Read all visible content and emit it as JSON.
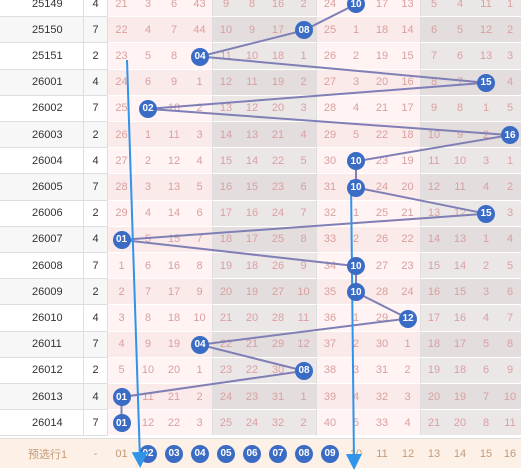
{
  "colors": {
    "red_text": "#d9a0a0",
    "row_bg_a": "#ffffff",
    "row_bg_b": "#f7f7f7",
    "red_bg_a": "#fff3f3",
    "red_bg_b": "#fbeaea",
    "shade_bg_a": "#ece7e7",
    "shade_bg_b": "#e3dddd",
    "ball": "#3a6cc5",
    "line": "#7f7fb6",
    "arrow": "#2f94ea",
    "footer_bg": "#fdf1e7",
    "footer_text": "#c49a77",
    "border": "#dedede"
  },
  "rows": [
    {
      "id": "25149",
      "cnt": "4",
      "vals": [
        "21",
        "3",
        "6",
        "43",
        "9",
        "8",
        "16",
        "2",
        "24",
        "10",
        "17",
        "13",
        "5",
        "4",
        "11",
        "1"
      ],
      "ball": 10
    },
    {
      "id": "25150",
      "cnt": "7",
      "vals": [
        "22",
        "4",
        "7",
        "44",
        "10",
        "9",
        "17",
        "08",
        "25",
        "1",
        "18",
        "14",
        "6",
        "5",
        "12",
        "2"
      ],
      "ball": 8
    },
    {
      "id": "25151",
      "cnt": "2",
      "vals": [
        "23",
        "5",
        "8",
        "04",
        "11",
        "10",
        "18",
        "1",
        "26",
        "2",
        "19",
        "15",
        "7",
        "6",
        "13",
        "3"
      ],
      "ball": 4
    },
    {
      "id": "26001",
      "cnt": "4",
      "vals": [
        "24",
        "6",
        "9",
        "1",
        "12",
        "11",
        "19",
        "2",
        "27",
        "3",
        "20",
        "16",
        "8",
        "7",
        "15",
        "4"
      ],
      "ball": 15
    },
    {
      "id": "26002",
      "cnt": "7",
      "vals": [
        "25",
        "02",
        "10",
        "2",
        "13",
        "12",
        "20",
        "3",
        "28",
        "4",
        "21",
        "17",
        "9",
        "8",
        "1",
        "5"
      ],
      "ball": 2
    },
    {
      "id": "26003",
      "cnt": "2",
      "vals": [
        "26",
        "1",
        "11",
        "3",
        "14",
        "13",
        "21",
        "4",
        "29",
        "5",
        "22",
        "18",
        "10",
        "9",
        "2",
        "16"
      ],
      "ball": 16
    },
    {
      "id": "26004",
      "cnt": "4",
      "vals": [
        "27",
        "2",
        "12",
        "4",
        "15",
        "14",
        "22",
        "5",
        "30",
        "10",
        "23",
        "19",
        "11",
        "10",
        "3",
        "1"
      ],
      "ball": 10
    },
    {
      "id": "26005",
      "cnt": "7",
      "vals": [
        "28",
        "3",
        "13",
        "5",
        "16",
        "15",
        "23",
        "6",
        "31",
        "10",
        "24",
        "20",
        "12",
        "11",
        "4",
        "2"
      ],
      "ball": 10
    },
    {
      "id": "26006",
      "cnt": "2",
      "vals": [
        "29",
        "4",
        "14",
        "6",
        "17",
        "16",
        "24",
        "7",
        "32",
        "1",
        "25",
        "21",
        "13",
        "12",
        "15",
        "3"
      ],
      "ball": 15
    },
    {
      "id": "26007",
      "cnt": "4",
      "vals": [
        "01",
        "5",
        "15",
        "7",
        "18",
        "17",
        "25",
        "8",
        "33",
        "2",
        "26",
        "22",
        "14",
        "13",
        "1",
        "4"
      ],
      "ball": 1
    },
    {
      "id": "26008",
      "cnt": "7",
      "vals": [
        "1",
        "6",
        "16",
        "8",
        "19",
        "18",
        "26",
        "9",
        "34",
        "10",
        "27",
        "23",
        "15",
        "14",
        "2",
        "5"
      ],
      "ball": 10
    },
    {
      "id": "26009",
      "cnt": "2",
      "vals": [
        "2",
        "7",
        "17",
        "9",
        "20",
        "19",
        "27",
        "10",
        "35",
        "10",
        "28",
        "24",
        "16",
        "15",
        "3",
        "6"
      ],
      "ball": 10
    },
    {
      "id": "26010",
      "cnt": "4",
      "vals": [
        "3",
        "8",
        "18",
        "10",
        "21",
        "20",
        "28",
        "11",
        "36",
        "1",
        "29",
        "12",
        "17",
        "16",
        "4",
        "7"
      ],
      "ball": 12
    },
    {
      "id": "26011",
      "cnt": "7",
      "vals": [
        "4",
        "9",
        "19",
        "04",
        "22",
        "21",
        "29",
        "12",
        "37",
        "2",
        "30",
        "1",
        "18",
        "17",
        "5",
        "8"
      ],
      "ball": 4
    },
    {
      "id": "26012",
      "cnt": "2",
      "vals": [
        "5",
        "10",
        "20",
        "1",
        "23",
        "22",
        "30",
        "08",
        "38",
        "3",
        "31",
        "2",
        "19",
        "18",
        "6",
        "9"
      ],
      "ball": 8
    },
    {
      "id": "26013",
      "cnt": "4",
      "vals": [
        "01",
        "11",
        "21",
        "2",
        "24",
        "23",
        "31",
        "1",
        "39",
        "4",
        "32",
        "3",
        "20",
        "19",
        "7",
        "10"
      ],
      "ball": 1
    },
    {
      "id": "26014",
      "cnt": "7",
      "vals": [
        "01",
        "12",
        "22",
        "3",
        "25",
        "24",
        "32",
        "2",
        "40",
        "5",
        "33",
        "4",
        "21",
        "20",
        "8",
        "11"
      ],
      "ball": 1
    }
  ],
  "footer": {
    "label": "预选行1",
    "cnt": "-",
    "vals": [
      "01",
      "02",
      "03",
      "04",
      "05",
      "06",
      "07",
      "08",
      "09",
      "10",
      "11",
      "12",
      "13",
      "14",
      "15",
      "16"
    ],
    "balls": [
      2,
      3,
      4,
      5,
      6,
      7,
      8,
      9
    ]
  }
}
